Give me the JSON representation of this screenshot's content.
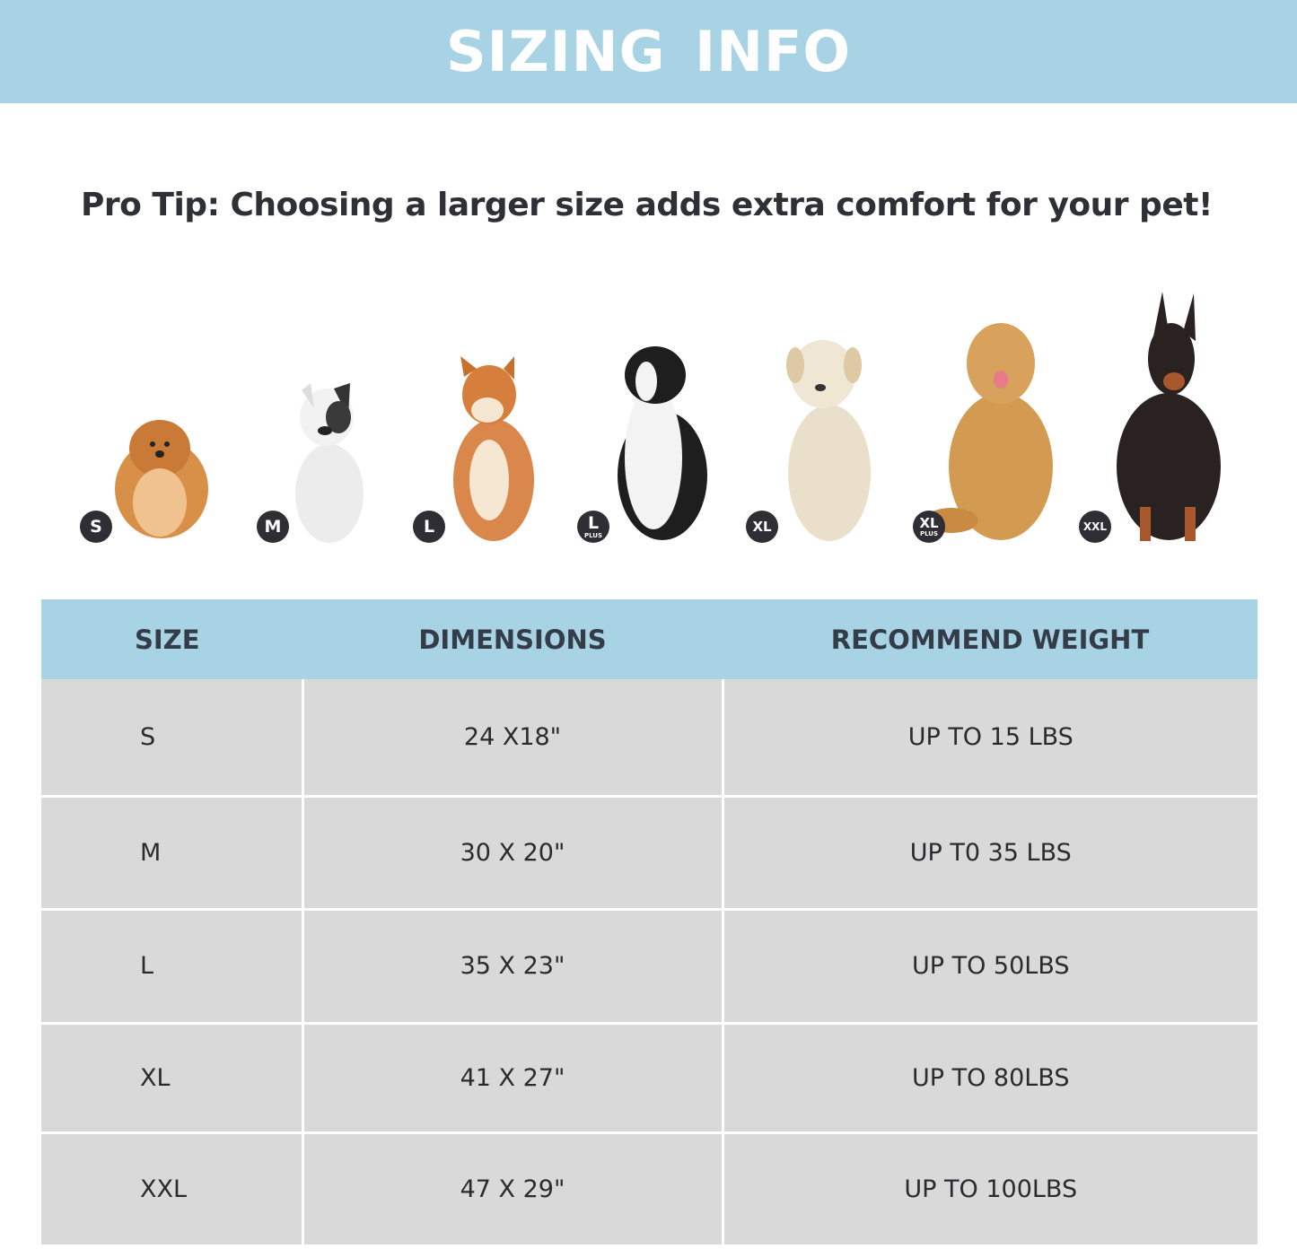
{
  "header": {
    "title": "SIZING INFO",
    "background": "#a8d3e4"
  },
  "pro_tip": "Pro Tip: Choosing a larger size adds extra comfort for your pet!",
  "dogs": [
    {
      "badge": "S",
      "plus": "",
      "breed_icon": "pomeranian-image",
      "color": "#d88f48"
    },
    {
      "badge": "M",
      "plus": "",
      "breed_icon": "french-bulldog-image",
      "color": "#eeeeee"
    },
    {
      "badge": "L",
      "plus": "",
      "breed_icon": "shiba-inu-image",
      "color": "#d9874a"
    },
    {
      "badge": "L",
      "plus": "PLUS",
      "breed_icon": "border-collie-image",
      "color": "#1e1e1e"
    },
    {
      "badge": "XL",
      "plus": "",
      "breed_icon": "labrador-image",
      "color": "#e9dfca"
    },
    {
      "badge": "XL",
      "plus": "PLUS",
      "breed_icon": "golden-retriever-image",
      "color": "#d39a52"
    },
    {
      "badge": "XXL",
      "plus": "",
      "breed_icon": "doberman-image",
      "color": "#2a2220"
    }
  ],
  "table": {
    "headers": [
      "SIZE",
      "DIMENSIONS",
      "RECOMMEND WEIGHT"
    ],
    "rows": [
      [
        "S",
        "24 X18\"",
        "UP TO 15 LBS"
      ],
      [
        "M",
        "30 X 20\"",
        "UP T0 35 LBS"
      ],
      [
        "L",
        "35 X 23\"",
        "UP TO 50LBS"
      ],
      [
        "XL",
        "41 X 27\"",
        "UP TO 80LBS"
      ],
      [
        "XXL",
        "47 X 29\"",
        "UP TO 100LBS"
      ]
    ]
  }
}
